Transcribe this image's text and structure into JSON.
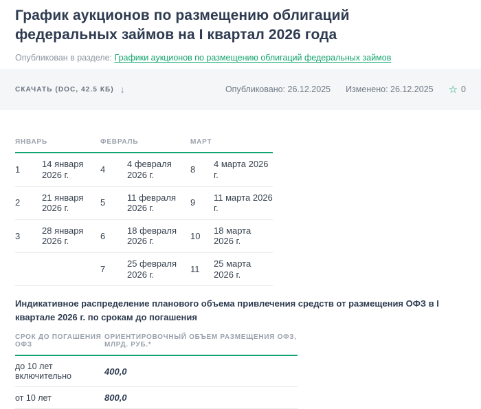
{
  "header": {
    "title": "График аукционов по размещению облигаций федеральных займов на I квартал 2026 года",
    "published_in_label": "Опубликован в разделе:",
    "published_in_link": "Графики аукционов по размещению облигаций федеральных займов"
  },
  "meta": {
    "download_label": "Скачать (DOC, 42.5 КБ)",
    "download_arrow": "↓",
    "published_label": "Опубликовано:",
    "published_date": "26.12.2025",
    "modified_label": "Изменено:",
    "modified_date": "26.12.2025",
    "star_icon": "☆",
    "star_count": "0"
  },
  "auction_table": {
    "headers": [
      "Январь",
      "Февраль",
      "Март"
    ],
    "rows": [
      [
        "1",
        "14 января 2026 г.",
        "4",
        "4 февраля 2026 г.",
        "8",
        "4 марта 2026 г."
      ],
      [
        "2",
        "21 января 2026 г.",
        "5",
        "11 февраля 2026 г.",
        "9",
        "11 марта 2026 г."
      ],
      [
        "3",
        "28 января 2026 г.",
        "6",
        "18 февраля 2026 г.",
        "10",
        "18 марта 2026 г."
      ],
      [
        "",
        "",
        "7",
        "25 февраля 2026 г.",
        "11",
        "25 марта 2026 г."
      ]
    ]
  },
  "distribution": {
    "title": "Индикативное распределение планового объема привлечения средств от размещения ОФЗ в I квартале 2026 г. по срокам до погашения",
    "col_term_header": "Срок до погашения ОФЗ",
    "col_volume_header": "Ориентировочный объем размещения ОФЗ, млрд. руб.*",
    "rows": [
      {
        "term": "до 10 лет включительно",
        "volume": "400,0"
      },
      {
        "term": "от 10 лет",
        "volume": "800,0"
      }
    ]
  },
  "colors": {
    "accent_green": "#10a572",
    "title_navy": "#2e3b50",
    "muted_grey": "#99a1ac",
    "band_grey": "#f5f6f7"
  }
}
